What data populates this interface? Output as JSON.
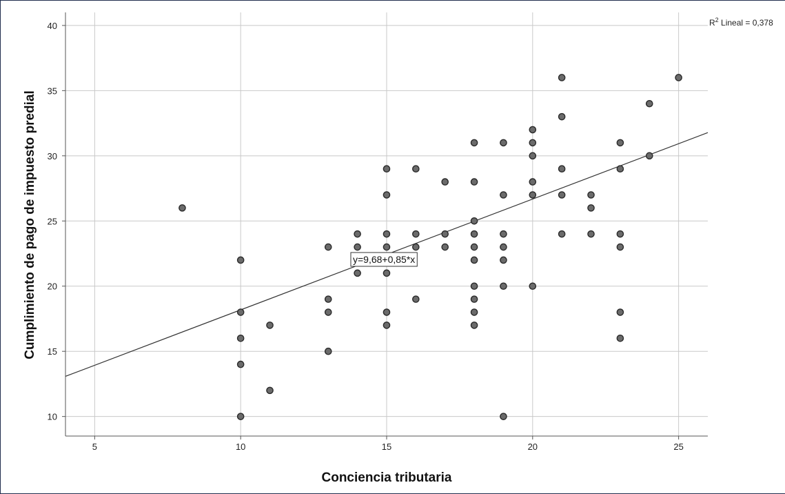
{
  "chart_data": {
    "type": "scatter",
    "xlabel": "Conciencia tributaria",
    "ylabel": "Cumplimiento de pago de impuesto predial",
    "xlim": [
      4,
      26
    ],
    "ylim": [
      8.5,
      41
    ],
    "xticks": [
      5,
      10,
      15,
      20,
      25
    ],
    "yticks": [
      10,
      15,
      20,
      25,
      30,
      35,
      40
    ],
    "grid": true,
    "points": [
      [
        8,
        26
      ],
      [
        10,
        22
      ],
      [
        10,
        18
      ],
      [
        10,
        16
      ],
      [
        10,
        14
      ],
      [
        10,
        10
      ],
      [
        11,
        17
      ],
      [
        11,
        12
      ],
      [
        13,
        23
      ],
      [
        13,
        19
      ],
      [
        13,
        18
      ],
      [
        13,
        15
      ],
      [
        14,
        24
      ],
      [
        14,
        23
      ],
      [
        14,
        22
      ],
      [
        14,
        21
      ],
      [
        15,
        29
      ],
      [
        15,
        27
      ],
      [
        15,
        24
      ],
      [
        15,
        23
      ],
      [
        15,
        21
      ],
      [
        15,
        18
      ],
      [
        15,
        17
      ],
      [
        16,
        29
      ],
      [
        16,
        24
      ],
      [
        16,
        23
      ],
      [
        16,
        19
      ],
      [
        17,
        28
      ],
      [
        17,
        24
      ],
      [
        17,
        23
      ],
      [
        18,
        31
      ],
      [
        18,
        28
      ],
      [
        18,
        25
      ],
      [
        18,
        24
      ],
      [
        18,
        23
      ],
      [
        18,
        22
      ],
      [
        18,
        20
      ],
      [
        18,
        19
      ],
      [
        18,
        18
      ],
      [
        18,
        17
      ],
      [
        19,
        31
      ],
      [
        19,
        27
      ],
      [
        19,
        24
      ],
      [
        19,
        23
      ],
      [
        19,
        22
      ],
      [
        19,
        20
      ],
      [
        19,
        10
      ],
      [
        20,
        32
      ],
      [
        20,
        31
      ],
      [
        20,
        30
      ],
      [
        20,
        28
      ],
      [
        20,
        27
      ],
      [
        20,
        20
      ],
      [
        21,
        36
      ],
      [
        21,
        33
      ],
      [
        21,
        29
      ],
      [
        21,
        27
      ],
      [
        21,
        24
      ],
      [
        22,
        27
      ],
      [
        22,
        26
      ],
      [
        22,
        24
      ],
      [
        23,
        31
      ],
      [
        23,
        29
      ],
      [
        23,
        24
      ],
      [
        23,
        23
      ],
      [
        23,
        18
      ],
      [
        23,
        16
      ],
      [
        24,
        34
      ],
      [
        24,
        30
      ],
      [
        25,
        36
      ]
    ],
    "fit_line": {
      "intercept": 9.68,
      "slope": 0.85
    },
    "equation_label": "y=9,68+0,85*x",
    "r2_label": {
      "prefix": "R",
      "sup": "2",
      "text": " Lineal = 0,378"
    },
    "colors": {
      "point_fill": "#6b6b6b",
      "point_stroke": "#2a2a2a",
      "grid": "#c8c8c8",
      "line": "#333333",
      "frame": "#1f2d4d"
    }
  }
}
